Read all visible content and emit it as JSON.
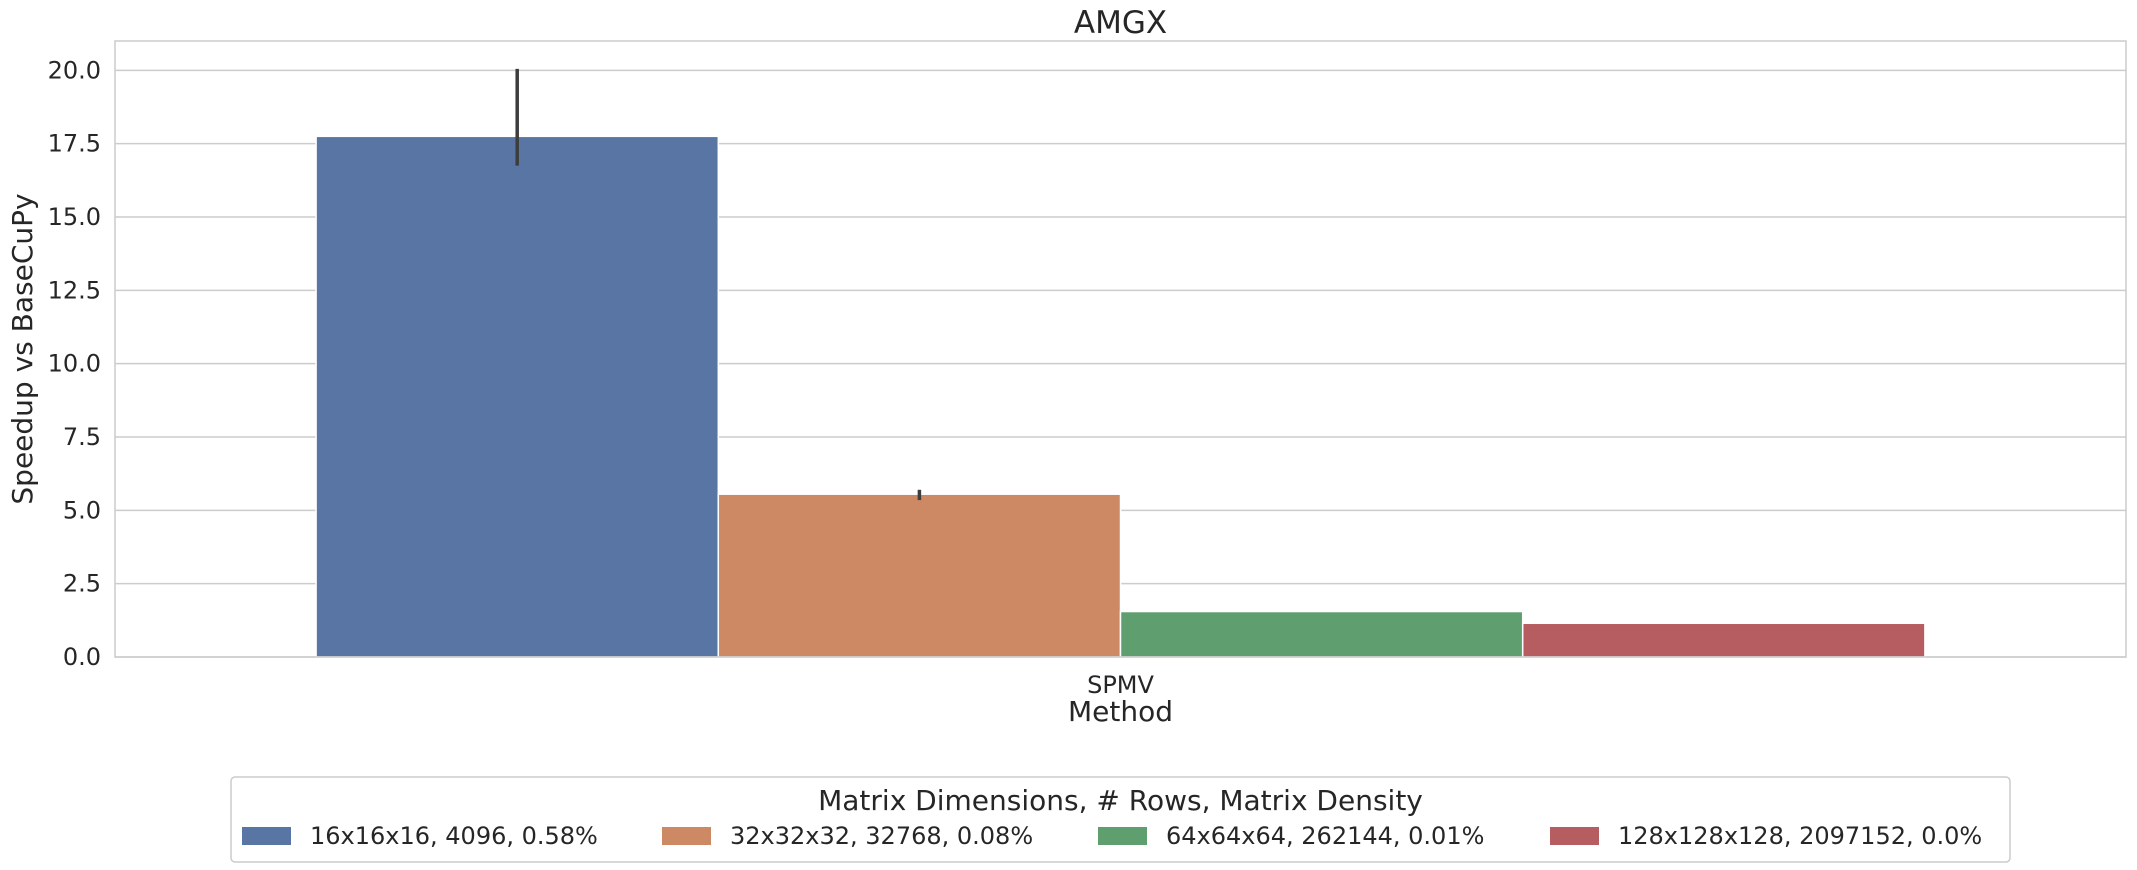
{
  "chart_data": {
    "type": "bar",
    "title": "AMGX",
    "xlabel": "Method",
    "ylabel": "Speedup vs BaseCuPy",
    "categories": [
      "SPMV"
    ],
    "ylim": [
      0,
      21
    ],
    "yticks": [
      0.0,
      2.5,
      5.0,
      7.5,
      10.0,
      12.5,
      15.0,
      17.5,
      20.0
    ],
    "ytick_labels": [
      "0.0",
      "2.5",
      "5.0",
      "7.5",
      "10.0",
      "12.5",
      "15.0",
      "17.5",
      "20.0"
    ],
    "grid": true,
    "legend": {
      "title": "Matrix Dimensions, # Rows, Matrix Density",
      "placement": "bottom-center"
    },
    "series": [
      {
        "name": "16x16x16, 4096, 0.58%",
        "values": [
          17.75
        ],
        "error": [
          [
            16.75,
            20.05
          ]
        ],
        "color": "#5975a4"
      },
      {
        "name": "32x32x32, 32768, 0.08%",
        "values": [
          5.55
        ],
        "error": [
          [
            5.35,
            5.7
          ]
        ],
        "color": "#cc8963"
      },
      {
        "name": "64x64x64, 262144, 0.01%",
        "values": [
          1.55
        ],
        "error": [
          [
            1.55,
            1.55
          ]
        ],
        "color": "#5f9e6e"
      },
      {
        "name": "128x128x128, 2097152, 0.0%",
        "values": [
          1.15
        ],
        "error": [
          [
            1.15,
            1.15
          ]
        ],
        "color": "#b55d60"
      }
    ]
  }
}
